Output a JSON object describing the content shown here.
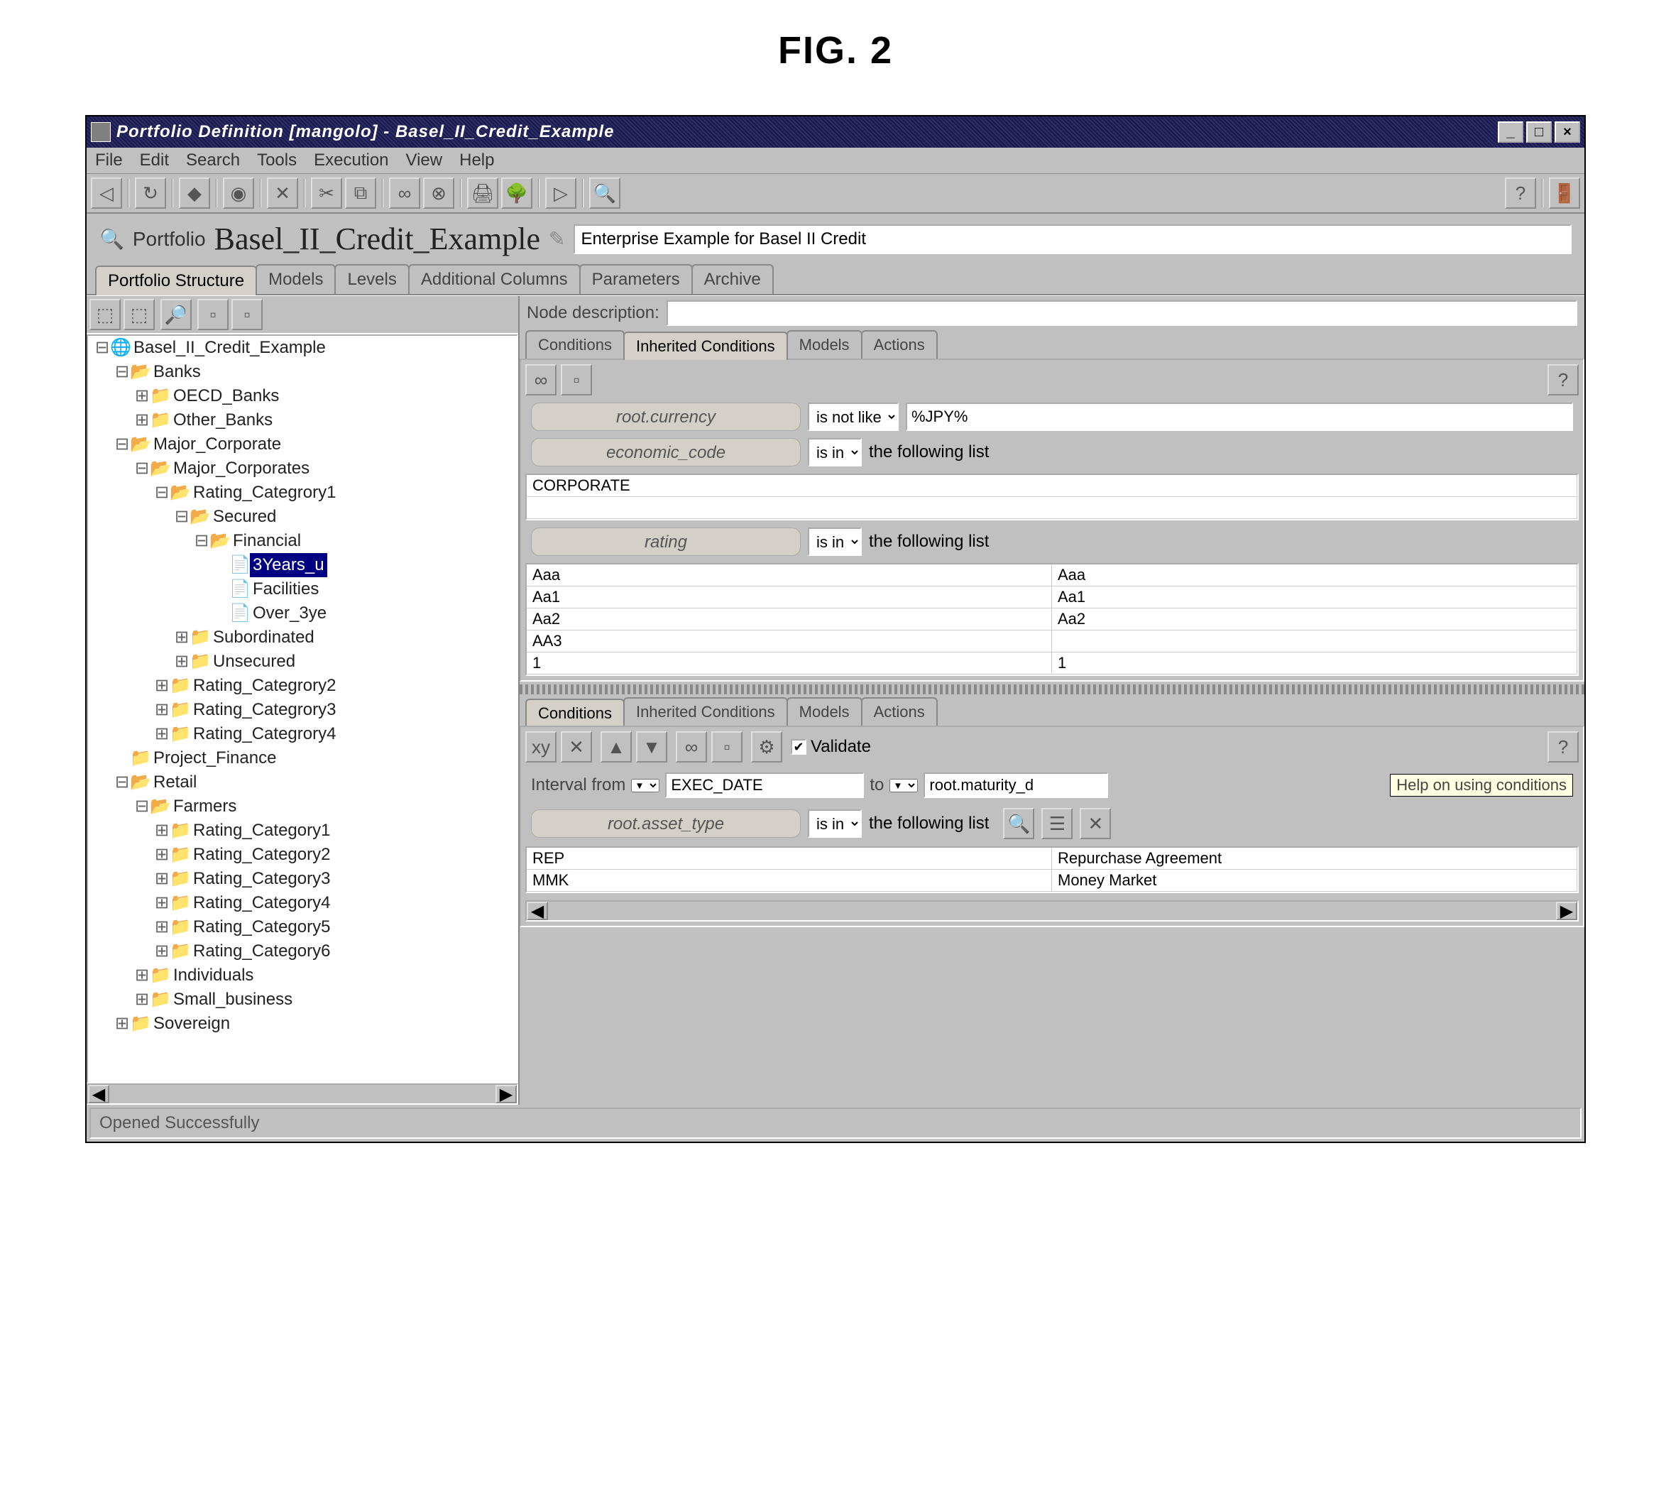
{
  "figure_label": "FIG. 2",
  "titlebar": {
    "title": "Portfolio Definition [mangolo] - Basel_II_Credit_Example"
  },
  "menubar": [
    "File",
    "Edit",
    "Search",
    "Tools",
    "Execution",
    "View",
    "Help"
  ],
  "portfolio": {
    "label": "Portfolio",
    "name": "Basel_II_Credit_Example",
    "description": "Enterprise Example for Basel II Credit"
  },
  "main_tabs": [
    "Portfolio Structure",
    "Models",
    "Levels",
    "Additional Columns",
    "Parameters",
    "Archive"
  ],
  "tree": [
    {
      "d": 0,
      "e": "⊟",
      "i": "🌐",
      "l": "Basel_II_Credit_Example"
    },
    {
      "d": 1,
      "e": "⊟",
      "i": "📂",
      "l": "Banks"
    },
    {
      "d": 2,
      "e": "⊞",
      "i": "📁",
      "l": "OECD_Banks"
    },
    {
      "d": 2,
      "e": "⊞",
      "i": "📁",
      "l": "Other_Banks"
    },
    {
      "d": 1,
      "e": "⊟",
      "i": "📂",
      "l": "Major_Corporate"
    },
    {
      "d": 2,
      "e": "⊟",
      "i": "📂",
      "l": "Major_Corporates"
    },
    {
      "d": 3,
      "e": "⊟",
      "i": "📂",
      "l": "Rating_Categrory1"
    },
    {
      "d": 4,
      "e": "⊟",
      "i": "📂",
      "l": "Secured"
    },
    {
      "d": 5,
      "e": "⊟",
      "i": "📂",
      "l": "Financial"
    },
    {
      "d": 6,
      "e": "",
      "i": "📄",
      "l": "3Years_u",
      "sel": true
    },
    {
      "d": 6,
      "e": "",
      "i": "📄",
      "l": "Facilities"
    },
    {
      "d": 6,
      "e": "",
      "i": "📄",
      "l": "Over_3ye"
    },
    {
      "d": 4,
      "e": "⊞",
      "i": "📁",
      "l": "Subordinated"
    },
    {
      "d": 4,
      "e": "⊞",
      "i": "📁",
      "l": "Unsecured"
    },
    {
      "d": 3,
      "e": "⊞",
      "i": "📁",
      "l": "Rating_Categrory2"
    },
    {
      "d": 3,
      "e": "⊞",
      "i": "📁",
      "l": "Rating_Categrory3"
    },
    {
      "d": 3,
      "e": "⊞",
      "i": "📁",
      "l": "Rating_Categrory4"
    },
    {
      "d": 1,
      "e": "",
      "i": "📁",
      "l": "Project_Finance"
    },
    {
      "d": 1,
      "e": "⊟",
      "i": "📂",
      "l": "Retail"
    },
    {
      "d": 2,
      "e": "⊟",
      "i": "📂",
      "l": "Farmers"
    },
    {
      "d": 3,
      "e": "⊞",
      "i": "📁",
      "l": "Rating_Category1"
    },
    {
      "d": 3,
      "e": "⊞",
      "i": "📁",
      "l": "Rating_Category2"
    },
    {
      "d": 3,
      "e": "⊞",
      "i": "📁",
      "l": "Rating_Category3"
    },
    {
      "d": 3,
      "e": "⊞",
      "i": "📁",
      "l": "Rating_Category4"
    },
    {
      "d": 3,
      "e": "⊞",
      "i": "📁",
      "l": "Rating_Category5"
    },
    {
      "d": 3,
      "e": "⊞",
      "i": "📁",
      "l": "Rating_Category6"
    },
    {
      "d": 2,
      "e": "⊞",
      "i": "📁",
      "l": "Individuals"
    },
    {
      "d": 2,
      "e": "⊞",
      "i": "📁",
      "l": "Small_business"
    },
    {
      "d": 1,
      "e": "⊞",
      "i": "📁",
      "l": "Sovereign"
    }
  ],
  "right": {
    "node_desc_label": "Node description:",
    "sub_tabs": [
      "Conditions",
      "Inherited Conditions",
      "Models",
      "Actions"
    ],
    "inherited": {
      "cond1": {
        "field": "root.currency",
        "op": "is not like",
        "val": "%JPY%"
      },
      "cond2": {
        "field": "economic_code",
        "op": "is in",
        "after": "the following list",
        "list": [
          "CORPORATE"
        ]
      },
      "cond3": {
        "field": "rating",
        "op": "is in",
        "after": "the following list",
        "rows": [
          [
            "Aaa",
            "Aaa"
          ],
          [
            "Aa1",
            "Aa1"
          ],
          [
            "Aa2",
            "Aa2"
          ],
          [
            "AA3",
            ""
          ],
          [
            "1",
            "1"
          ]
        ]
      }
    },
    "lower": {
      "validate_label": "Validate",
      "validate_checked": true,
      "interval_label": "Interval from",
      "interval_from": "EXEC_DATE",
      "to_label": "to",
      "interval_to": "root.maturity_d",
      "tooltip": "Help on using conditions",
      "cond": {
        "field": "root.asset_type",
        "op": "is in",
        "after": "the following list",
        "rows": [
          [
            "REP",
            "Repurchase Agreement"
          ],
          [
            "MMK",
            "Money Market"
          ]
        ]
      }
    }
  },
  "statusbar": "Opened Successfully"
}
